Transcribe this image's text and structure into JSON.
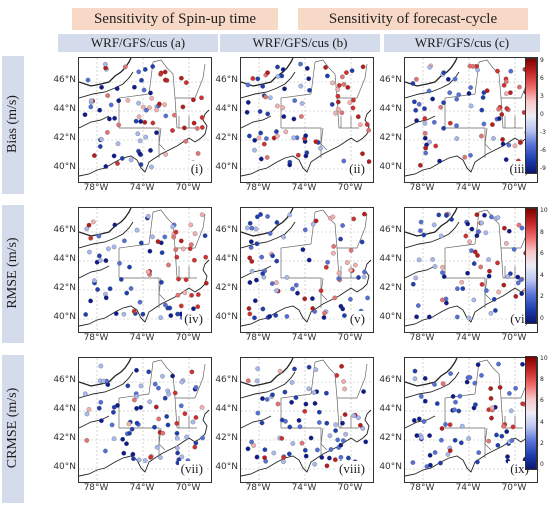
{
  "headers": {
    "left": "Sensitivity of Spin-up time",
    "right": "Sensitivity of forecast-cycle"
  },
  "columns": [
    "WRF/GFS/cus (a)",
    "WRF/GFS/cus (b)",
    "WRF/GFS/cus (c)"
  ],
  "rows": [
    "Bias (m/s)",
    "RMSE (m/s)",
    "CRMSE (m/s)"
  ],
  "panel_labels": [
    [
      "(i)",
      "(ii)",
      "(iii)"
    ],
    [
      "(iv)",
      "(v)",
      "(vi)"
    ],
    [
      "(vii)",
      "(viii)",
      "(ix)"
    ]
  ],
  "lat_labels": [
    "46°N",
    "44°N",
    "42°N",
    "40°N"
  ],
  "lon_labels": [
    "78°W",
    "74°W",
    "70°W"
  ],
  "colorbars": [
    {
      "ticks": [
        "9",
        "6",
        "3",
        "0",
        "-3",
        "-6",
        "-9"
      ]
    },
    {
      "ticks": [
        "10",
        "8",
        "6",
        "4",
        "2",
        "0"
      ]
    },
    {
      "ticks": [
        "10",
        "8",
        "6",
        "4",
        "2",
        "0"
      ]
    }
  ],
  "colors": {
    "red": "#c62828",
    "blue": "#1f3fb0",
    "neutral": "#e8e8f0",
    "header_bg": "#f8d8c6",
    "subheader_bg": "#d4dceb"
  }
}
